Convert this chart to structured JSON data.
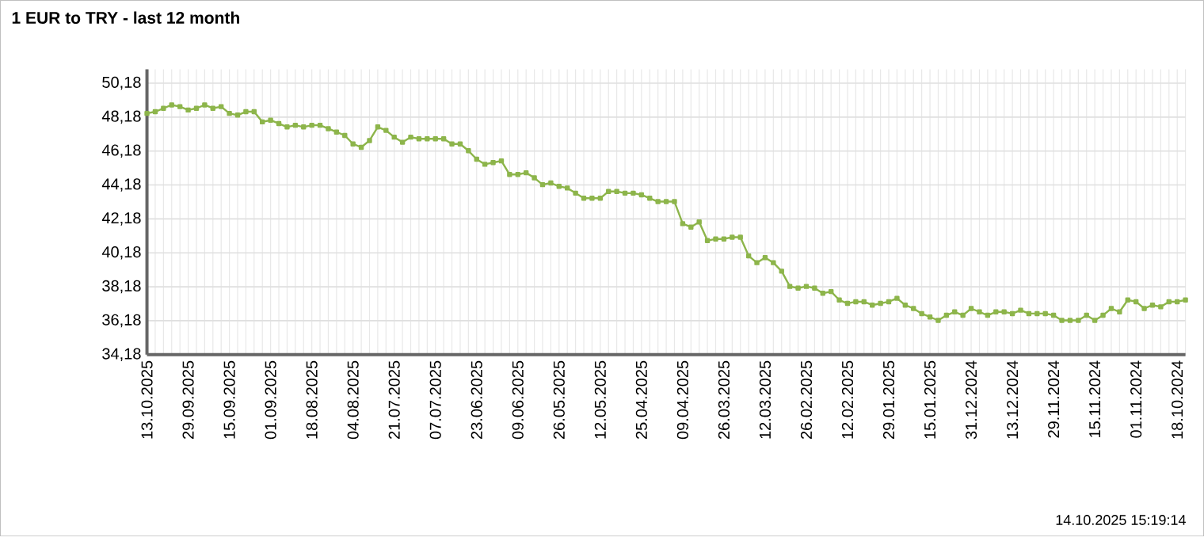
{
  "chart_data": {
    "type": "line",
    "title": "1 EUR to TRY - last 12 month",
    "categories": [
      "13.10.2025",
      null,
      null,
      null,
      null,
      "29.09.2025",
      null,
      null,
      null,
      null,
      "15.09.2025",
      null,
      null,
      null,
      null,
      "01.09.2025",
      null,
      null,
      null,
      null,
      "18.08.2025",
      null,
      null,
      null,
      null,
      "04.08.2025",
      null,
      null,
      null,
      null,
      "21.07.2025",
      null,
      null,
      null,
      null,
      "07.07.2025",
      null,
      null,
      null,
      null,
      "23.06.2025",
      null,
      null,
      null,
      null,
      "09.06.2025",
      null,
      null,
      null,
      null,
      "26.05.2025",
      null,
      null,
      null,
      null,
      "12.05.2025",
      null,
      null,
      null,
      null,
      "25.04.2025",
      null,
      null,
      null,
      null,
      "09.04.2025",
      null,
      null,
      null,
      null,
      "26.03.2025",
      null,
      null,
      null,
      null,
      "12.03.2025",
      null,
      null,
      null,
      null,
      "26.02.2025",
      null,
      null,
      null,
      null,
      "12.02.2025",
      null,
      null,
      null,
      null,
      "29.01.2025",
      null,
      null,
      null,
      null,
      "15.01.2025",
      null,
      null,
      null,
      null,
      "31.12.2024",
      null,
      null,
      null,
      null,
      "13.12.2024",
      null,
      null,
      null,
      null,
      "29.11.2024",
      null,
      null,
      null,
      null,
      "15.11.2024",
      null,
      null,
      null,
      null,
      "01.11.2024",
      null,
      null,
      null,
      null,
      "18.10.2024",
      null
    ],
    "series": [
      {
        "color": "#8db54b",
        "values": [
          48.4,
          48.5,
          48.7,
          48.9,
          48.8,
          48.6,
          48.7,
          48.9,
          48.7,
          48.8,
          48.4,
          48.3,
          48.5,
          48.5,
          47.9,
          48.0,
          47.8,
          47.6,
          47.7,
          47.6,
          47.7,
          47.7,
          47.5,
          47.3,
          47.1,
          46.6,
          46.4,
          46.8,
          47.6,
          47.4,
          47.0,
          46.7,
          47.0,
          46.9,
          46.9,
          46.9,
          46.9,
          46.6,
          46.6,
          46.2,
          45.7,
          45.4,
          45.5,
          45.6,
          44.8,
          44.8,
          44.9,
          44.6,
          44.2,
          44.3,
          44.1,
          44.0,
          43.7,
          43.4,
          43.4,
          43.4,
          43.8,
          43.8,
          43.7,
          43.7,
          43.6,
          43.4,
          43.2,
          43.2,
          43.2,
          41.9,
          41.7,
          42.0,
          40.9,
          41.0,
          41.0,
          41.1,
          41.1,
          40.0,
          39.6,
          39.9,
          39.6,
          39.1,
          38.2,
          38.1,
          38.2,
          38.1,
          37.8,
          37.9,
          37.4,
          37.2,
          37.3,
          37.3,
          37.1,
          37.2,
          37.3,
          37.5,
          37.1,
          36.9,
          36.6,
          36.4,
          36.2,
          36.5,
          36.7,
          36.5,
          36.9,
          36.7,
          36.5,
          36.7,
          36.7,
          36.6,
          36.8,
          36.6,
          36.6,
          36.6,
          36.5,
          36.2,
          36.2,
          36.2,
          36.5,
          36.2,
          36.5,
          36.9,
          36.7,
          37.4,
          37.3,
          36.9,
          37.1,
          37.0,
          37.3,
          37.3,
          37.4
        ]
      }
    ],
    "ylim": [
      34.18,
      51.0
    ],
    "yticks": [
      {
        "value": 34.18,
        "label": "34,18"
      },
      {
        "value": 36.18,
        "label": "36,18"
      },
      {
        "value": 38.18,
        "label": "38,18"
      },
      {
        "value": 40.18,
        "label": "40,18"
      },
      {
        "value": 42.18,
        "label": "42,18"
      },
      {
        "value": 44.18,
        "label": "44,18"
      },
      {
        "value": 46.18,
        "label": "46,18"
      },
      {
        "value": 48.18,
        "label": "48,18"
      },
      {
        "value": 50.18,
        "label": "50,18"
      }
    ],
    "grid": true,
    "marker": "square",
    "line_style": "solid",
    "annotations": [
      "14.10.2025 15:19:14"
    ]
  }
}
